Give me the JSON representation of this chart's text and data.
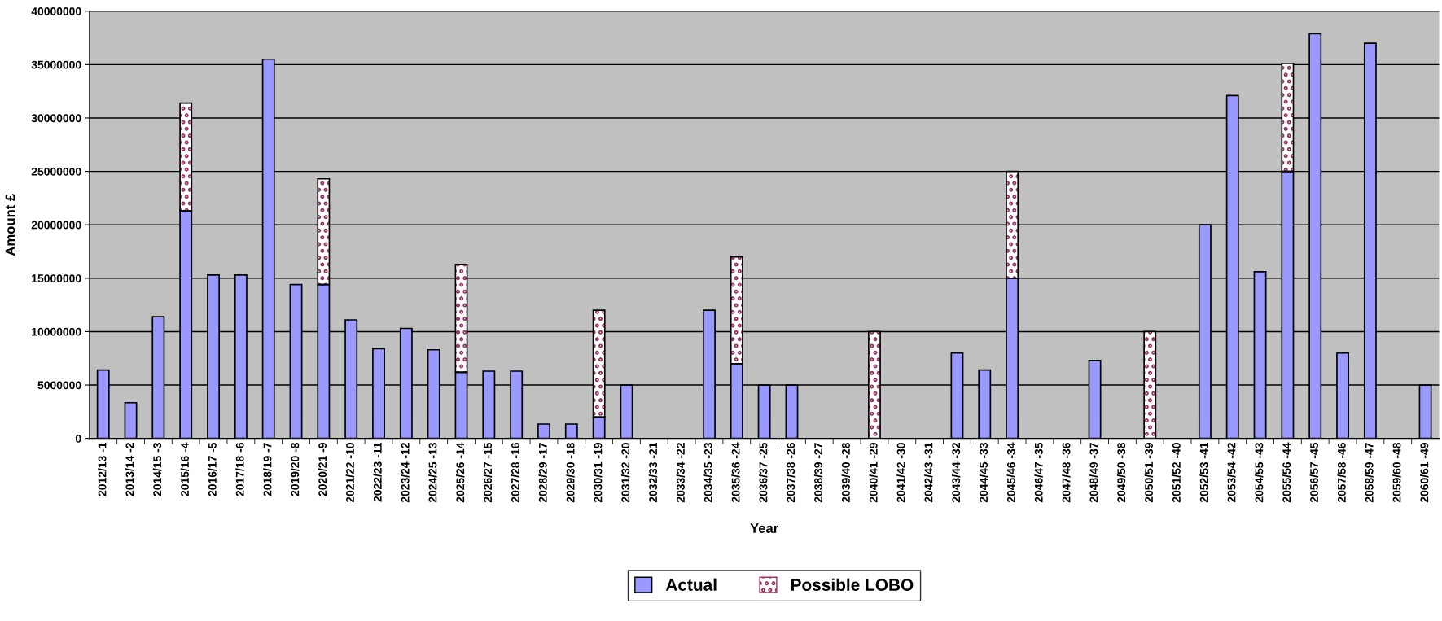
{
  "chart_data": {
    "type": "bar",
    "stacked": true,
    "xlabel": "Year",
    "ylabel": "Amount £",
    "categories": [
      "2012/13 -1",
      "2013/14 -2",
      "2014/15 -3",
      "2015/16 -4",
      "2016/17 -5",
      "2017/18 -6",
      "2018/19 -7",
      "2019/20 -8",
      "2020/21 -9",
      "2021/22 -10",
      "2022/23 -11",
      "2023/24 -12",
      "2024/25 -13",
      "2025/26 -14",
      "2026/27 -15",
      "2027/28 -16",
      "2028/29 -17",
      "2029/30 -18",
      "2030/31 -19",
      "2031/32 -20",
      "2032/33 -21",
      "2033/34 -22",
      "2034/35 -23",
      "2035/36 -24",
      "2036/37 -25",
      "2037/38 -26",
      "2038/39 -27",
      "2039/40 -28",
      "2040/41 -29",
      "2041/42 -30",
      "2042/43 -31",
      "2043/44 -32",
      "2044/45 -33",
      "2045/46 -34",
      "2046/47 -35",
      "2047/48 -36",
      "2048/49 -37",
      "2049/50 -38",
      "2050/51 -39",
      "2051/52 -40",
      "2052/53 -41",
      "2053/54 -42",
      "2054/55 -43",
      "2055/56 -44",
      "2056/57 -45",
      "2057/58 -46",
      "2058/59 -47",
      "2059/60 -48",
      "2060/61 -49"
    ],
    "series": [
      {
        "name": "Actual",
        "color": "#9999ff",
        "values": [
          6400000,
          3350000,
          11400000,
          21300000,
          15300000,
          15300000,
          35500000,
          14400000,
          14400000,
          11100000,
          8400000,
          10300000,
          8300000,
          6200000,
          6300000,
          6300000,
          1350000,
          1350000,
          2000000,
          5000000,
          null,
          null,
          12000000,
          7000000,
          5000000,
          5000000,
          null,
          null,
          null,
          null,
          null,
          8000000,
          6400000,
          15000000,
          null,
          null,
          7300000,
          null,
          null,
          null,
          20000000,
          32100000,
          15600000,
          25000000,
          37900000,
          8000000,
          37000000,
          null,
          5000000
        ]
      },
      {
        "name": "Possible LOBO",
        "color": "#993366",
        "values": [
          null,
          null,
          null,
          10100000,
          null,
          null,
          null,
          null,
          9900000,
          null,
          null,
          null,
          null,
          10100000,
          null,
          null,
          null,
          null,
          10000000,
          null,
          null,
          null,
          null,
          10000000,
          null,
          null,
          null,
          null,
          10000000,
          null,
          null,
          null,
          null,
          10000000,
          null,
          null,
          null,
          null,
          10000000,
          null,
          null,
          null,
          null,
          10100000,
          null,
          null,
          null,
          null,
          null
        ]
      }
    ],
    "ylim": [
      0,
      40000000
    ],
    "yticks": [
      0,
      5000000,
      10000000,
      15000000,
      20000000,
      25000000,
      30000000,
      35000000,
      40000000
    ],
    "grid": "y",
    "legend": "bottom"
  }
}
